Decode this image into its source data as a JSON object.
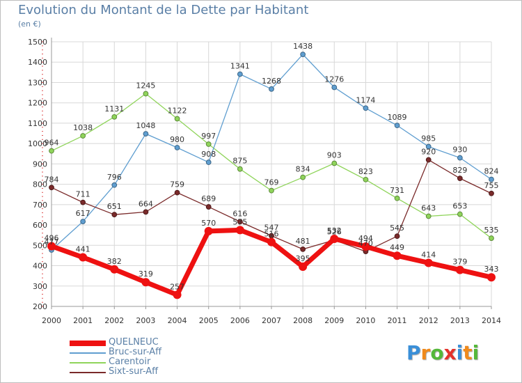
{
  "header": {
    "title": "Evolution du Montant de la Dette par Habitant",
    "unit": "(en €)"
  },
  "logo": {
    "letters": [
      "P",
      "r",
      "o",
      "x",
      "i",
      "t",
      "i"
    ],
    "colors": [
      "#3a8fd8",
      "#f08a1c",
      "#55b83a",
      "#e4322b",
      "#3a8fd8",
      "#f08a1c",
      "#55b83a"
    ]
  },
  "chart_data": {
    "type": "line",
    "title": "Evolution du Montant de la Dette par Habitant",
    "ylabel": "(en €)",
    "xlabel": "",
    "ylim": [
      200,
      1500
    ],
    "yticks": [
      200,
      300,
      400,
      500,
      600,
      700,
      800,
      900,
      1000,
      1100,
      1200,
      1300,
      1400,
      1500
    ],
    "grid": true,
    "legend_position": "bottom-left",
    "categories": [
      "2000",
      "2001",
      "2002",
      "2003",
      "2004",
      "2005",
      "2006",
      "2007",
      "2008",
      "2009",
      "2010",
      "2011",
      "2012",
      "2013",
      "2014"
    ],
    "series": [
      {
        "name": "Carentoir",
        "color": "#8fd45a",
        "values": [
          964,
          1038,
          1131,
          1245,
          1122,
          997,
          875,
          769,
          834,
          903,
          823,
          731,
          643,
          653,
          535
        ]
      },
      {
        "name": "Bruc-sur-Aff",
        "color": "#5f9ed0",
        "values": [
          477,
          617,
          796,
          1048,
          980,
          908,
          1341,
          1268,
          1438,
          1276,
          1174,
          1089,
          985,
          930,
          824
        ]
      },
      {
        "name": "Sixt-sur-Aff",
        "color": "#7a2a2a",
        "values": [
          784,
          711,
          651,
          664,
          759,
          689,
          616,
          547,
          481,
          526,
          470,
          545,
          920,
          829,
          755
        ]
      },
      {
        "name": "QUELNEUC",
        "color": "#ee1111",
        "values": [
          496,
          441,
          382,
          319,
          257,
          570,
          575,
          516,
          395,
          532,
          494,
          449,
          414,
          379,
          343
        ]
      }
    ],
    "legend_order": [
      "QUELNEUC",
      "Bruc-sur-Aff",
      "Carentoir",
      "Sixt-sur-Aff"
    ]
  }
}
